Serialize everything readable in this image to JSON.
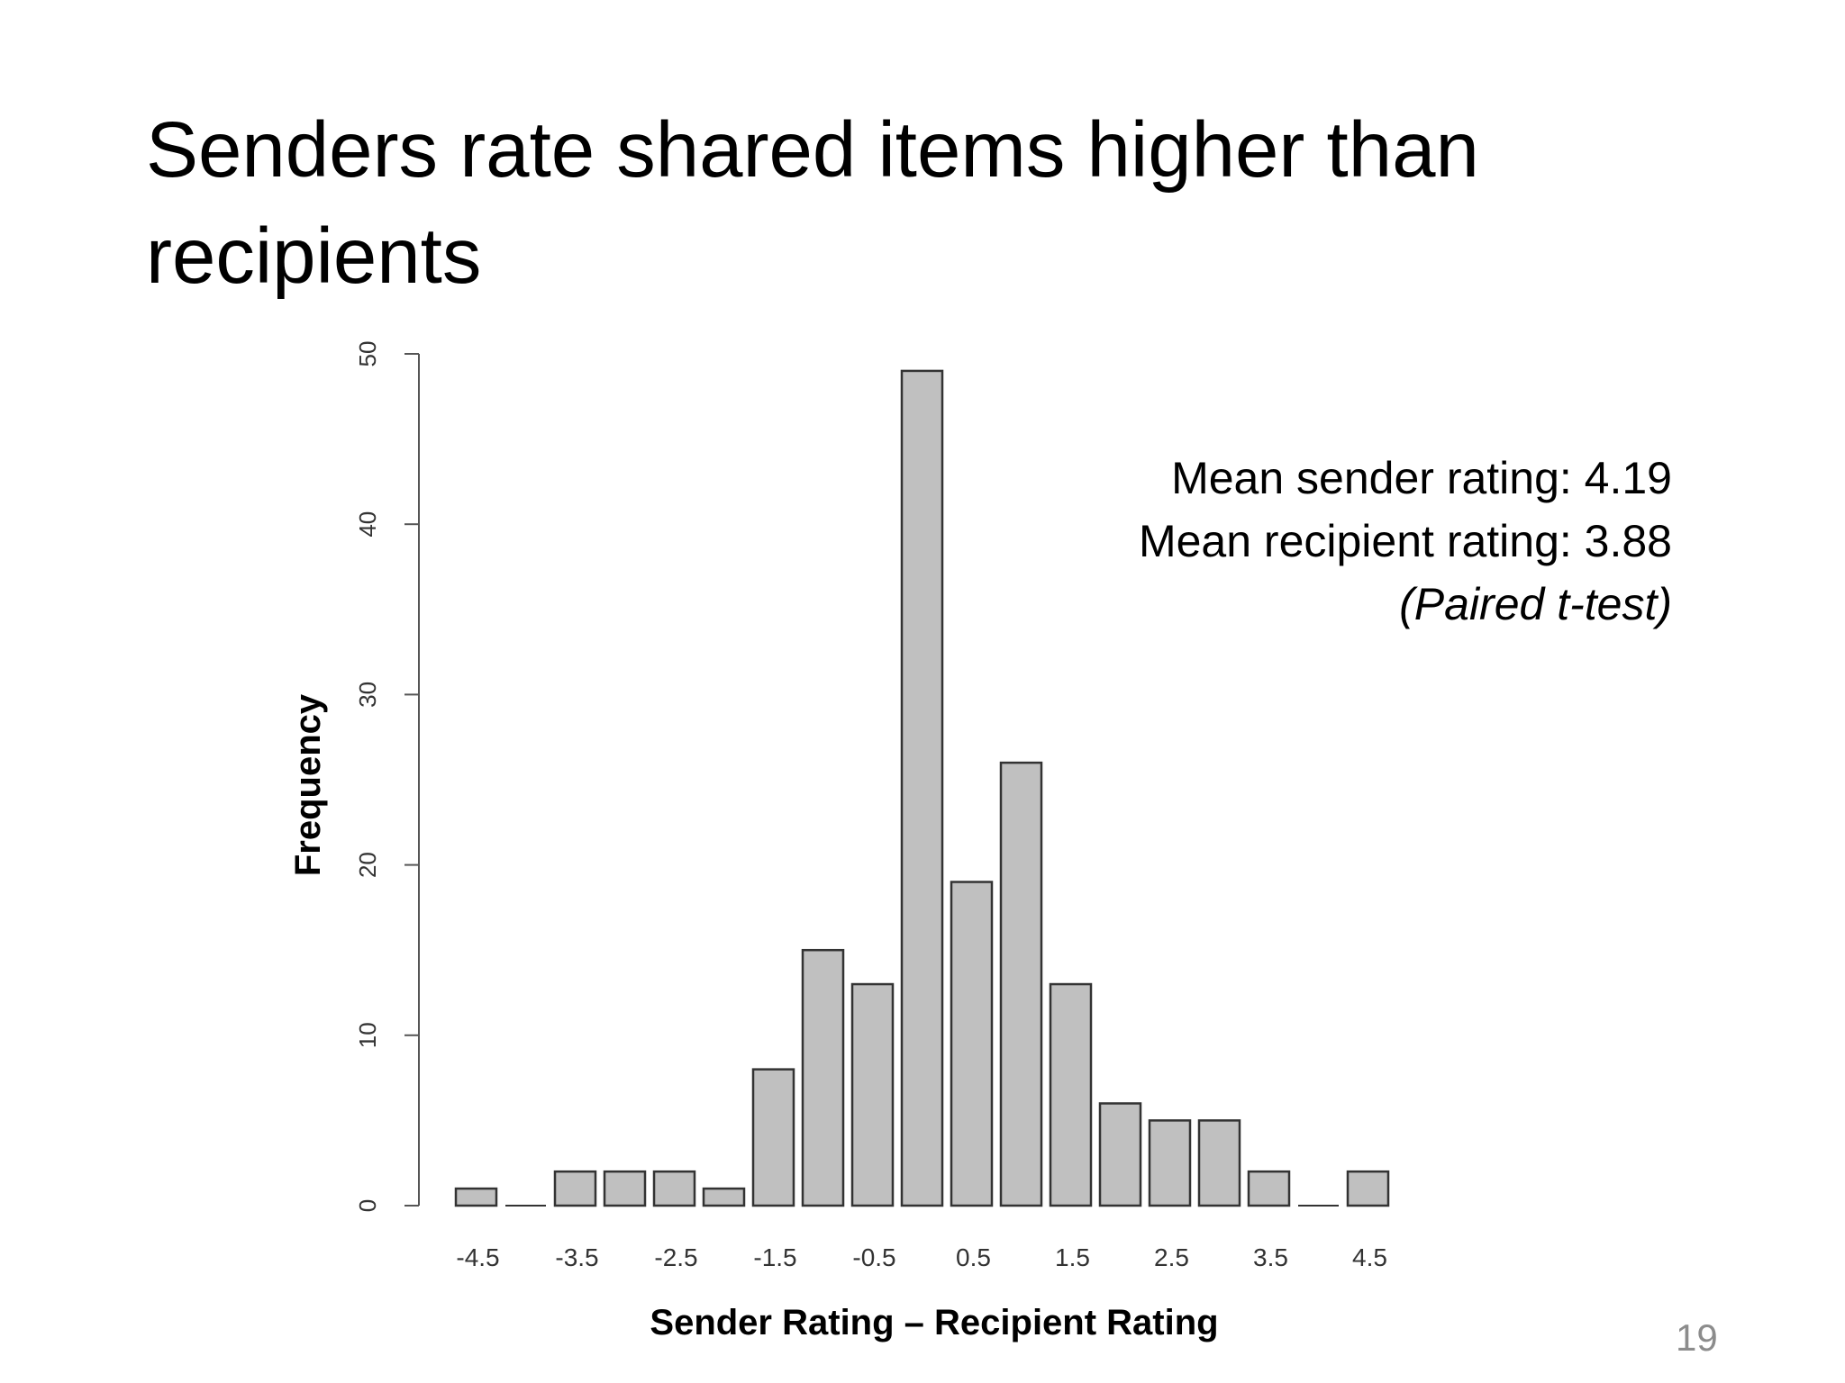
{
  "slide": {
    "title": "Senders rate shared items higher than recipients",
    "page_number": "19"
  },
  "annotations": {
    "mean_sender": "Mean sender rating: 4.19",
    "mean_recipient": "Mean recipient rating: 3.88",
    "test": "(Paired t-test)"
  },
  "chart_data": {
    "type": "bar",
    "title": "",
    "xlabel": "Sender Rating – Recipient Rating",
    "ylabel": "Frequency",
    "ylim": [
      0,
      50
    ],
    "yticks": [
      "0",
      "10",
      "20",
      "30",
      "40",
      "50"
    ],
    "xtick_labels": [
      "-4.5",
      "-3.5",
      "-2.5",
      "-1.5",
      "-0.5",
      "0.5",
      "1.5",
      "2.5",
      "3.5",
      "4.5"
    ],
    "categories": [
      "-4.5",
      "-4",
      "-3.5",
      "-3",
      "-2.5",
      "-2",
      "-1.5",
      "-1",
      "-0.5",
      "0",
      "0.5",
      "1",
      "1.5",
      "2",
      "2.5",
      "3",
      "3.5",
      "4",
      "4.5"
    ],
    "values": [
      1,
      0,
      2,
      2,
      2,
      1,
      8,
      15,
      13,
      49,
      19,
      26,
      13,
      6,
      5,
      5,
      2,
      0,
      2
    ],
    "grid": false,
    "bar_color": "#c0c0c0",
    "edge_color": "#333333"
  }
}
